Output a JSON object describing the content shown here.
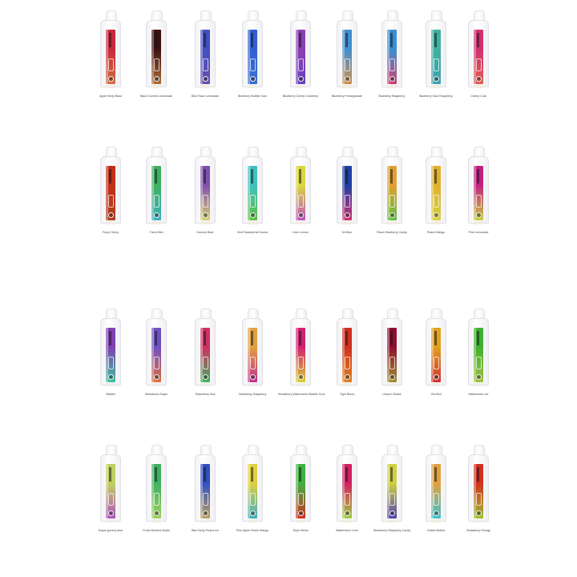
{
  "rows": [
    {
      "items": [
        {
          "name": "Apple Berry Blast",
          "colors": [
            "#c8283c",
            "#d07040"
          ]
        },
        {
          "name": "Black Current Lemonade",
          "colors": [
            "#3a1010",
            "#b0703a"
          ]
        },
        {
          "name": "Blue Razz Lemonade",
          "colors": [
            "#4050c0",
            "#6a50b0"
          ]
        },
        {
          "name": "Blueberry Bubble Gum",
          "colors": [
            "#3060d0",
            "#3a70d0"
          ]
        },
        {
          "name": "Blueberry Cherry Cranberry",
          "colors": [
            "#8a40b0",
            "#6a40c0"
          ]
        },
        {
          "name": "Blueberry Pomegranate",
          "colors": [
            "#4090d0",
            "#d09050"
          ]
        },
        {
          "name": "Blueberry Raspberry",
          "colors": [
            "#3a90d0",
            "#d04070"
          ]
        },
        {
          "name": "Blueberry Sour Raspberry",
          "colors": [
            "#40b0a0",
            "#40a0b0"
          ]
        },
        {
          "name": "Cherry Cola",
          "colors": [
            "#d03070",
            "#e06050"
          ]
        }
      ]
    },
    {
      "items": [
        {
          "name": "Fizzy Cherry",
          "colors": [
            "#c03018",
            "#b04020"
          ]
        },
        {
          "name": "Fresh Mint",
          "colors": [
            "#40b060",
            "#40b0c0"
          ]
        },
        {
          "name": "Gummy Bear",
          "colors": [
            "#8050b0",
            "#d8d070"
          ]
        },
        {
          "name": "Kiwi Passionfruit Guava",
          "colors": [
            "#40c0c0",
            "#60c040"
          ]
        },
        {
          "name": "Lime Lemon",
          "colors": [
            "#d8d840",
            "#c050c0"
          ]
        },
        {
          "name": "Mr Blue",
          "colors": [
            "#2040a0",
            "#d03070"
          ]
        },
        {
          "name": "Peach Blueberry Candy",
          "colors": [
            "#e0a030",
            "#60c040"
          ]
        },
        {
          "name": "Peach Mango",
          "colors": [
            "#e0b030",
            "#d8d040"
          ]
        },
        {
          "name": "Pink Lemonade",
          "colors": [
            "#c02080",
            "#c8d040"
          ]
        }
      ]
    },
    {
      "items": [
        {
          "name": "Skittles",
          "colors": [
            "#8040b0",
            "#40c0a0"
          ]
        },
        {
          "name": "Strawberry Grape",
          "colors": [
            "#7050c0",
            "#e07040"
          ]
        },
        {
          "name": "Strawberry Kiwi",
          "colors": [
            "#d03060",
            "#40b060"
          ]
        },
        {
          "name": "Strawberry Raspberry",
          "colors": [
            "#e0a040",
            "#c03090"
          ]
        },
        {
          "name": "Strawberry Watermelon Bubble Gum",
          "colors": [
            "#d02070",
            "#d8d030"
          ]
        },
        {
          "name": "Tiger Blood",
          "colors": [
            "#d03020",
            "#e08020"
          ]
        },
        {
          "name": "Unicorn Shake",
          "colors": [
            "#901030",
            "#a09030"
          ]
        },
        {
          "name": "Vim Bull",
          "colors": [
            "#e0a020",
            "#d03030"
          ]
        },
        {
          "name": "Watermelon Ice",
          "colors": [
            "#40b030",
            "#a0c040"
          ]
        }
      ]
    },
    {
      "items": [
        {
          "name": "Grape gummy bear",
          "colors": [
            "#c0d060",
            "#b050c0"
          ]
        },
        {
          "name": "Fresh Menthol Mojito",
          "colors": [
            "#40b060",
            "#a0d060"
          ]
        },
        {
          "name": "Blue Berry Peach Ice",
          "colors": [
            "#3050c0",
            "#c0a060"
          ]
        },
        {
          "name": "Pine Apple Peach Mango",
          "colors": [
            "#e0d040",
            "#40b0c0"
          ]
        },
        {
          "name": "Triple Melon",
          "colors": [
            "#40b040",
            "#d03020"
          ]
        },
        {
          "name": "Watermelon Lime",
          "colors": [
            "#d02060",
            "#a0d040"
          ]
        },
        {
          "name": "Strawberry Raspberry Candy",
          "colors": [
            "#d0d040",
            "#5040b0"
          ]
        },
        {
          "name": "Hubba Bubba",
          "colors": [
            "#e0a040",
            "#40c0d0"
          ]
        },
        {
          "name": "Strawberry Energy",
          "colors": [
            "#d03020",
            "#a0c030"
          ]
        }
      ]
    }
  ]
}
